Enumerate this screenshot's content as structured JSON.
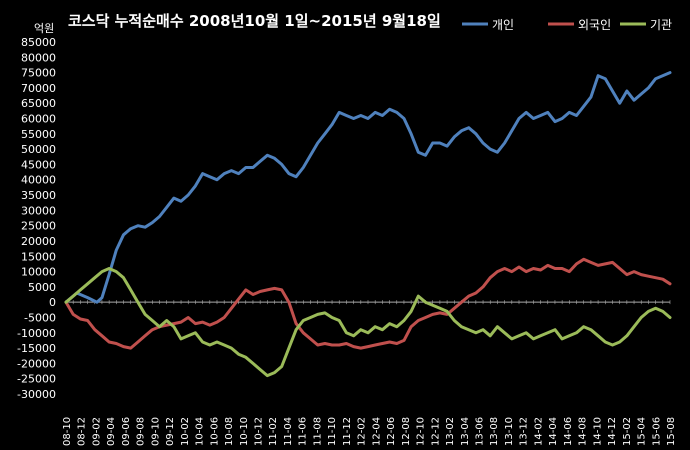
{
  "chart_data": {
    "type": "line",
    "title": "코스닥  누적순매수 2008년10월 1일~2015년 9월18일",
    "unit": "억원",
    "ylim": [
      -30000,
      85000
    ],
    "yticks": [
      85000,
      80000,
      75000,
      70000,
      65000,
      60000,
      55000,
      50000,
      45000,
      40000,
      35000,
      30000,
      25000,
      20000,
      15000,
      10000,
      5000,
      0,
      -5000,
      -10000,
      -15000,
      -20000,
      -25000,
      -30000
    ],
    "xticks": [
      "08-10",
      "08-12",
      "09-02",
      "09-04",
      "09-06",
      "09-08",
      "09-10",
      "09-12",
      "10-02",
      "10-04",
      "10-06",
      "10-08",
      "10-10",
      "10-12",
      "11-02",
      "11-04",
      "11-06",
      "11-08",
      "11-10",
      "11-12",
      "12-02",
      "12-04",
      "12-06",
      "12-08",
      "12-10",
      "12-12",
      "13-02",
      "13-04",
      "13-06",
      "13-08",
      "13-10",
      "13-12",
      "14-02",
      "14-04",
      "14-06",
      "14-08",
      "14-10",
      "14-12",
      "15-02",
      "15-04",
      "15-06",
      "15-08"
    ],
    "x_range_months": [
      0,
      84
    ],
    "legend_position": "top-right",
    "series": [
      {
        "name": "개인",
        "color": "#4f81bd",
        "points": [
          [
            0,
            0
          ],
          [
            1.5,
            3000
          ],
          [
            3,
            1500
          ],
          [
            4.3,
            0
          ],
          [
            5,
            1500
          ],
          [
            6,
            9000
          ],
          [
            7,
            17000
          ],
          [
            8,
            22000
          ],
          [
            9,
            24000
          ],
          [
            10,
            25000
          ],
          [
            11,
            24500
          ],
          [
            12,
            26000
          ],
          [
            13,
            28000
          ],
          [
            14,
            31000
          ],
          [
            15,
            34000
          ],
          [
            16,
            33000
          ],
          [
            17,
            35000
          ],
          [
            18,
            38000
          ],
          [
            19,
            42000
          ],
          [
            20,
            41000
          ],
          [
            21,
            40000
          ],
          [
            22,
            42000
          ],
          [
            23,
            43000
          ],
          [
            24,
            42000
          ],
          [
            25,
            44000
          ],
          [
            26,
            44000
          ],
          [
            27,
            46000
          ],
          [
            28,
            48000
          ],
          [
            29,
            47000
          ],
          [
            30,
            45000
          ],
          [
            31,
            42000
          ],
          [
            32,
            41000
          ],
          [
            33,
            44000
          ],
          [
            34,
            48000
          ],
          [
            35,
            52000
          ],
          [
            36,
            55000
          ],
          [
            37,
            58000
          ],
          [
            38,
            62000
          ],
          [
            39,
            61000
          ],
          [
            40,
            60000
          ],
          [
            41,
            61000
          ],
          [
            42,
            60000
          ],
          [
            43,
            62000
          ],
          [
            44,
            61000
          ],
          [
            45,
            63000
          ],
          [
            46,
            62000
          ],
          [
            47,
            60000
          ],
          [
            48,
            55000
          ],
          [
            49,
            49000
          ],
          [
            50,
            48000
          ],
          [
            51,
            52000
          ],
          [
            52,
            52000
          ],
          [
            53,
            51000
          ],
          [
            54,
            54000
          ],
          [
            55,
            56000
          ],
          [
            56,
            57000
          ],
          [
            57,
            55000
          ],
          [
            58,
            52000
          ],
          [
            59,
            50000
          ],
          [
            60,
            49000
          ],
          [
            61,
            52000
          ],
          [
            62,
            56000
          ],
          [
            63,
            60000
          ],
          [
            64,
            62000
          ],
          [
            65,
            60000
          ],
          [
            66,
            61000
          ],
          [
            67,
            62000
          ],
          [
            68,
            59000
          ],
          [
            69,
            60000
          ],
          [
            70,
            62000
          ],
          [
            71,
            61000
          ],
          [
            72,
            64000
          ],
          [
            73,
            67000
          ],
          [
            74,
            74000
          ],
          [
            75,
            73000
          ],
          [
            76,
            69000
          ],
          [
            77,
            65000
          ],
          [
            78,
            69000
          ],
          [
            79,
            66000
          ],
          [
            80,
            68000
          ],
          [
            81,
            70000
          ],
          [
            82,
            73000
          ],
          [
            84,
            75000
          ]
        ]
      },
      {
        "name": "외국인",
        "color": "#c0504d",
        "points": [
          [
            0,
            0
          ],
          [
            1,
            -4000
          ],
          [
            2,
            -5500
          ],
          [
            3,
            -6000
          ],
          [
            4,
            -9000
          ],
          [
            5,
            -11000
          ],
          [
            6,
            -13000
          ],
          [
            7,
            -13500
          ],
          [
            8,
            -14500
          ],
          [
            9,
            -15000
          ],
          [
            10,
            -13000
          ],
          [
            11,
            -11000
          ],
          [
            12,
            -9000
          ],
          [
            13,
            -8000
          ],
          [
            14,
            -7500
          ],
          [
            15,
            -7000
          ],
          [
            16,
            -6500
          ],
          [
            17,
            -5000
          ],
          [
            18,
            -7000
          ],
          [
            19,
            -6500
          ],
          [
            20,
            -7500
          ],
          [
            21,
            -6500
          ],
          [
            22,
            -5000
          ],
          [
            23,
            -2000
          ],
          [
            24,
            1000
          ],
          [
            25,
            4000
          ],
          [
            26,
            2500
          ],
          [
            27,
            3500
          ],
          [
            28,
            4000
          ],
          [
            29,
            4500
          ],
          [
            30,
            4000
          ],
          [
            31,
            0
          ],
          [
            32,
            -7000
          ],
          [
            33,
            -10000
          ],
          [
            34,
            -12000
          ],
          [
            35,
            -14000
          ],
          [
            36,
            -13500
          ],
          [
            37,
            -14000
          ],
          [
            38,
            -14000
          ],
          [
            39,
            -13500
          ],
          [
            40,
            -14500
          ],
          [
            41,
            -15000
          ],
          [
            42,
            -14500
          ],
          [
            43,
            -14000
          ],
          [
            44,
            -13500
          ],
          [
            45,
            -13000
          ],
          [
            46,
            -13500
          ],
          [
            47,
            -12500
          ],
          [
            48,
            -8000
          ],
          [
            49,
            -6000
          ],
          [
            50,
            -5000
          ],
          [
            51,
            -4000
          ],
          [
            52,
            -3500
          ],
          [
            53,
            -4000
          ],
          [
            54,
            -2000
          ],
          [
            55,
            0
          ],
          [
            56,
            2000
          ],
          [
            57,
            3000
          ],
          [
            58,
            5000
          ],
          [
            59,
            8000
          ],
          [
            60,
            10000
          ],
          [
            61,
            11000
          ],
          [
            62,
            10000
          ],
          [
            63,
            11500
          ],
          [
            64,
            10000
          ],
          [
            65,
            11000
          ],
          [
            66,
            10500
          ],
          [
            67,
            12000
          ],
          [
            68,
            11000
          ],
          [
            69,
            11000
          ],
          [
            70,
            10000
          ],
          [
            71,
            12500
          ],
          [
            72,
            14000
          ],
          [
            73,
            13000
          ],
          [
            74,
            12000
          ],
          [
            75,
            12500
          ],
          [
            76,
            13000
          ],
          [
            77,
            11000
          ],
          [
            78,
            9000
          ],
          [
            79,
            10000
          ],
          [
            80,
            9000
          ],
          [
            81,
            8500
          ],
          [
            82,
            8000
          ],
          [
            83,
            7500
          ],
          [
            84,
            6000
          ]
        ]
      },
      {
        "name": "기관",
        "color": "#9bbb59",
        "points": [
          [
            0,
            0
          ],
          [
            1,
            2000
          ],
          [
            2,
            4000
          ],
          [
            3,
            6000
          ],
          [
            4,
            8000
          ],
          [
            5,
            10000
          ],
          [
            6,
            11000
          ],
          [
            7,
            10000
          ],
          [
            8,
            8000
          ],
          [
            9,
            4000
          ],
          [
            10,
            0
          ],
          [
            11,
            -4000
          ],
          [
            12,
            -6000
          ],
          [
            13,
            -8000
          ],
          [
            14,
            -6000
          ],
          [
            15,
            -8000
          ],
          [
            16,
            -12000
          ],
          [
            17,
            -11000
          ],
          [
            18,
            -10000
          ],
          [
            19,
            -13000
          ],
          [
            20,
            -14000
          ],
          [
            21,
            -13000
          ],
          [
            22,
            -14000
          ],
          [
            23,
            -15000
          ],
          [
            24,
            -17000
          ],
          [
            25,
            -18000
          ],
          [
            26,
            -20000
          ],
          [
            27,
            -22000
          ],
          [
            28,
            -24000
          ],
          [
            29,
            -23000
          ],
          [
            30,
            -21000
          ],
          [
            31,
            -15000
          ],
          [
            32,
            -9000
          ],
          [
            33,
            -6000
          ],
          [
            34,
            -5000
          ],
          [
            35,
            -4000
          ],
          [
            36,
            -3500
          ],
          [
            37,
            -5000
          ],
          [
            38,
            -6000
          ],
          [
            39,
            -10000
          ],
          [
            40,
            -11000
          ],
          [
            41,
            -9000
          ],
          [
            42,
            -10000
          ],
          [
            43,
            -8000
          ],
          [
            44,
            -9000
          ],
          [
            45,
            -7000
          ],
          [
            46,
            -8000
          ],
          [
            47,
            -6000
          ],
          [
            48,
            -3000
          ],
          [
            49,
            2000
          ],
          [
            50,
            0
          ],
          [
            51,
            -1000
          ],
          [
            52,
            -2000
          ],
          [
            53,
            -3000
          ],
          [
            54,
            -6000
          ],
          [
            55,
            -8000
          ],
          [
            56,
            -9000
          ],
          [
            57,
            -10000
          ],
          [
            58,
            -9000
          ],
          [
            59,
            -11000
          ],
          [
            60,
            -8000
          ],
          [
            61,
            -10000
          ],
          [
            62,
            -12000
          ],
          [
            63,
            -11000
          ],
          [
            64,
            -10000
          ],
          [
            65,
            -12000
          ],
          [
            66,
            -11000
          ],
          [
            67,
            -10000
          ],
          [
            68,
            -9000
          ],
          [
            69,
            -12000
          ],
          [
            70,
            -11000
          ],
          [
            71,
            -10000
          ],
          [
            72,
            -8000
          ],
          [
            73,
            -9000
          ],
          [
            74,
            -11000
          ],
          [
            75,
            -13000
          ],
          [
            76,
            -14000
          ],
          [
            77,
            -13000
          ],
          [
            78,
            -11000
          ],
          [
            79,
            -8000
          ],
          [
            80,
            -5000
          ],
          [
            81,
            -3000
          ],
          [
            82,
            -2000
          ],
          [
            83,
            -3000
          ],
          [
            84,
            -5000
          ]
        ]
      }
    ]
  }
}
